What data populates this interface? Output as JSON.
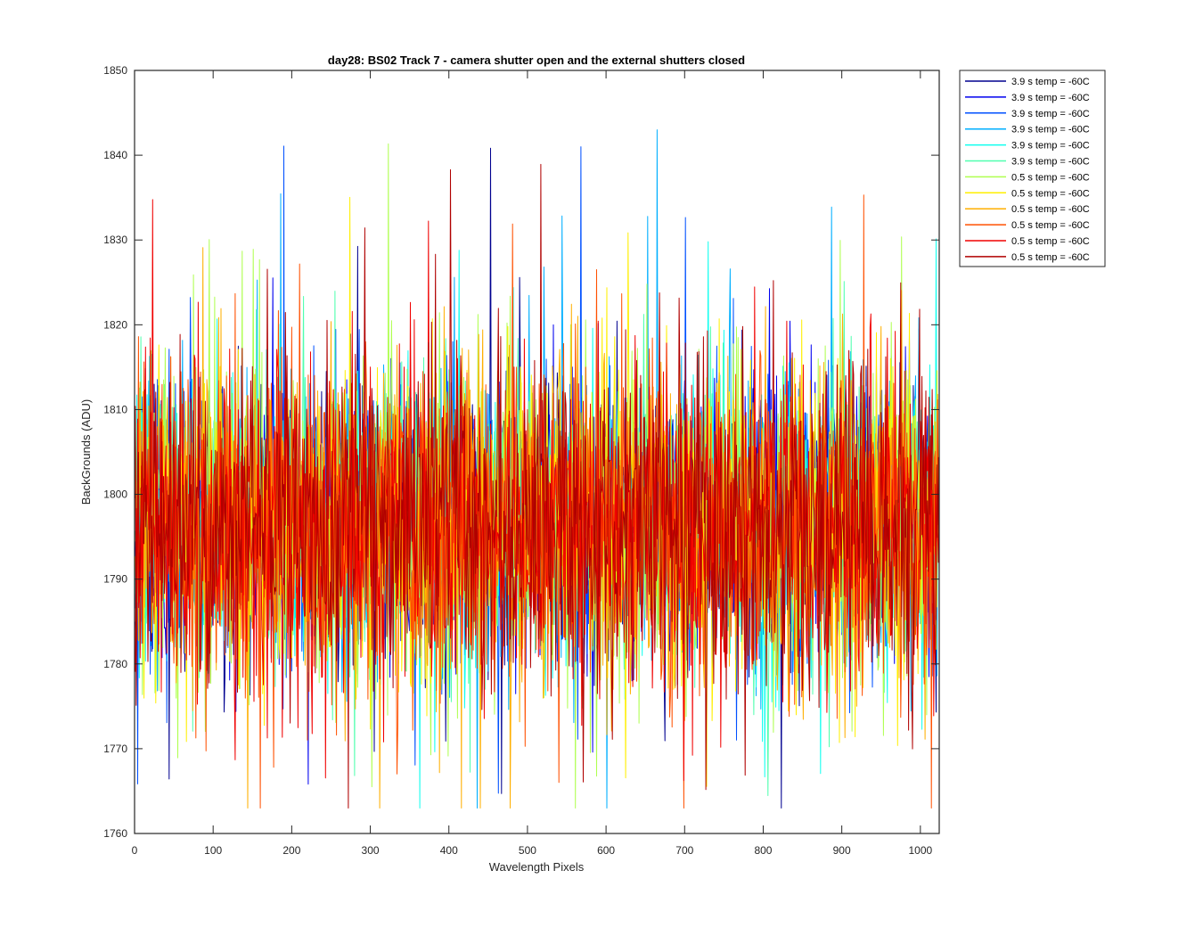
{
  "chart_data": {
    "type": "line",
    "title": "day28: BS02  Track 7 - camera shutter open and the external shutters closed",
    "xlabel": "Wavelength Pixels",
    "ylabel": "BackGrounds (ADU)",
    "xlim": [
      0,
      1024
    ],
    "ylim": [
      1760,
      1850
    ],
    "xticks": [
      0,
      100,
      200,
      300,
      400,
      500,
      600,
      700,
      800,
      900,
      1000
    ],
    "yticks": [
      1760,
      1770,
      1780,
      1790,
      1800,
      1810,
      1820,
      1830,
      1840,
      1850
    ],
    "grid": false,
    "legend_position": "outside-top-right",
    "x_range": [
      1,
      1024
    ],
    "noise_mean": 1797,
    "noise_min": 1763,
    "noise_max": 1843,
    "series": [
      {
        "name": "3.9 s temp = -60C",
        "color": "#00008F"
      },
      {
        "name": "3.9 s temp = -60C",
        "color": "#0000EF"
      },
      {
        "name": "3.9 s temp = -60C",
        "color": "#0050FF"
      },
      {
        "name": "3.9 s temp = -60C",
        "color": "#00AFFF"
      },
      {
        "name": "3.9 s temp = -60C",
        "color": "#10FFEF"
      },
      {
        "name": "3.9 s temp = -60C",
        "color": "#50FFAF"
      },
      {
        "name": "0.5 s temp = -60C",
        "color": "#AFFF50"
      },
      {
        "name": "0.5 s temp = -60C",
        "color": "#FFEF00"
      },
      {
        "name": "0.5 s temp = -60C",
        "color": "#FFAF00"
      },
      {
        "name": "0.5 s temp = -60C",
        "color": "#FF5000"
      },
      {
        "name": "0.5 s temp = -60C",
        "color": "#F00000"
      },
      {
        "name": "0.5 s temp = -60C",
        "color": "#B00000"
      }
    ]
  }
}
